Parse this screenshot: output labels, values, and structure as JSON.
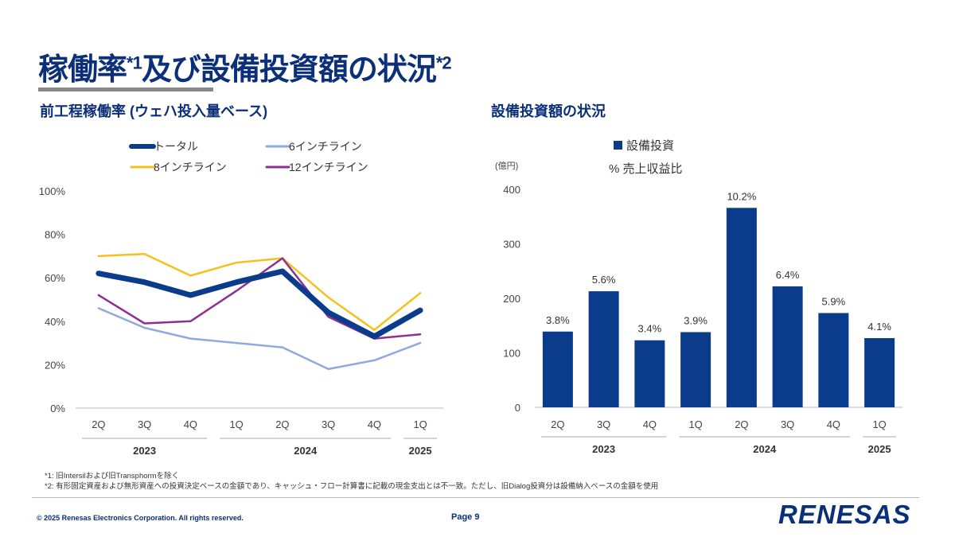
{
  "slide": {
    "title_main_1": "稼働率",
    "title_sup_1": "*1",
    "title_main_2": "及び設備投資額の状況",
    "title_sup_2": "*2",
    "left_section_title": "前工程稼働率 (ウェハ投入量ベース)",
    "right_section_title": "設備投資額の状況",
    "note_1": "*1: 旧Intersilおよび旧Transphormを除く",
    "note_2": "*2: 有形固定資産および無形資産への投資決定ベースの金額であり、キャッシュ・フロー計算書に記載の現金支出とは不一致。ただし、旧Dialog投資分は設備納入ベースの金額を使用",
    "copyright": "© 2025 Renesas Electronics Corporation. All rights reserved.",
    "page": "Page 9",
    "brand": "RENESAS"
  },
  "colors": {
    "navy": "#0b3c8c",
    "light_blue": "#8faadc",
    "yellow": "#f5c21b",
    "purple": "#8e2f95",
    "bar": "#0b3c8c",
    "title": "#0b2f78"
  },
  "chart_data": [
    {
      "type": "line",
      "title": "前工程稼働率 (ウェハ投入量ベース)",
      "categories": [
        "2Q",
        "3Q",
        "4Q",
        "1Q",
        "2Q",
        "3Q",
        "4Q",
        "1Q"
      ],
      "year_groups": [
        {
          "label": "2023",
          "from": 0,
          "to": 2
        },
        {
          "label": "2024",
          "from": 3,
          "to": 6
        },
        {
          "label": "2025",
          "from": 7,
          "to": 7
        }
      ],
      "ylim": [
        0,
        100
      ],
      "yticks": [
        0,
        20,
        40,
        60,
        80,
        100
      ],
      "ytick_labels": [
        "0%",
        "20%",
        "40%",
        "60%",
        "80%",
        "100%"
      ],
      "series": [
        {
          "name": "トータル",
          "color": "#0b3c8c",
          "width": 7,
          "values": [
            62,
            58,
            52,
            58,
            63,
            44,
            33,
            45
          ]
        },
        {
          "name": "6インチライン",
          "color": "#8faadc",
          "width": 2.5,
          "values": [
            46,
            37,
            32,
            30,
            28,
            18,
            22,
            30
          ]
        },
        {
          "name": "8インチライン",
          "color": "#f5c21b",
          "width": 2.5,
          "values": [
            70,
            71,
            61,
            67,
            69,
            51,
            36,
            53
          ]
        },
        {
          "name": "12インチライン",
          "color": "#8e2f95",
          "width": 2.5,
          "values": [
            52,
            39,
            40,
            54,
            69,
            42,
            32,
            34
          ]
        }
      ]
    },
    {
      "type": "bar",
      "title": "設備投資額の状況",
      "unit_label": "(億円)",
      "legend_bar": "設備投資",
      "legend_pct": "% 売上収益比",
      "categories": [
        "2Q",
        "3Q",
        "4Q",
        "1Q",
        "2Q",
        "3Q",
        "4Q",
        "1Q"
      ],
      "year_groups": [
        {
          "label": "2023",
          "from": 0,
          "to": 2
        },
        {
          "label": "2024",
          "from": 3,
          "to": 6
        },
        {
          "label": "2025",
          "from": 7,
          "to": 7
        }
      ],
      "ylim": [
        0,
        400
      ],
      "yticks": [
        0,
        100,
        200,
        300,
        400
      ],
      "ytick_labels": [
        "0",
        "100",
        "200",
        "300",
        "400"
      ],
      "values": [
        139,
        213,
        123,
        138,
        366,
        222,
        173,
        127
      ],
      "data_labels": [
        "3.8%",
        "5.6%",
        "3.4%",
        "3.9%",
        "10.2%",
        "6.4%",
        "5.9%",
        "4.1%"
      ]
    }
  ]
}
